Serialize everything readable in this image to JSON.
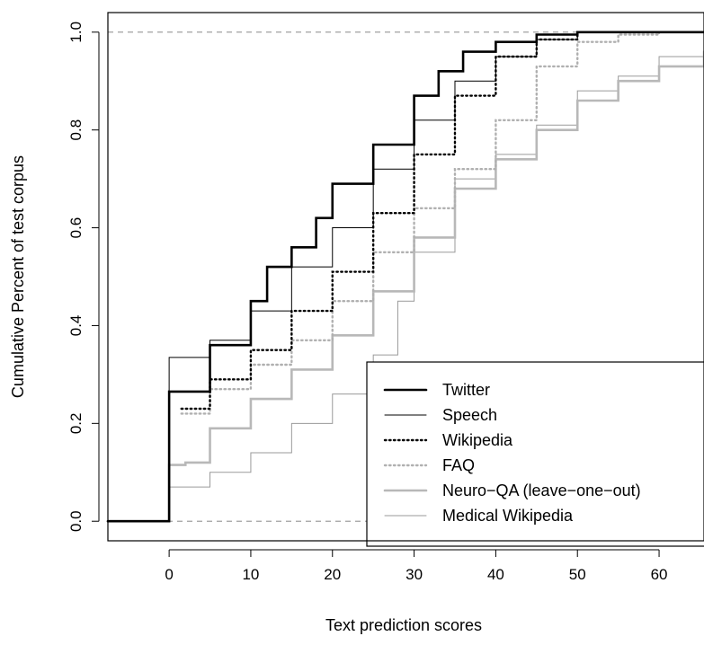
{
  "chart_data": {
    "type": "line",
    "title": "",
    "xlabel": "Text prediction scores",
    "ylabel": "Cumulative Percent of test corpus",
    "xlim": [
      -7.5,
      65.5
    ],
    "ylim": [
      -0.04,
      1.04
    ],
    "xticks": [
      "0",
      "10",
      "20",
      "30",
      "40",
      "50",
      "60"
    ],
    "yticks": [
      "0.0",
      "0.2",
      "0.4",
      "0.6",
      "0.8",
      "1.0"
    ],
    "reference_lines": [
      0,
      1
    ],
    "legend": {
      "placement": "bottom-right",
      "entries": [
        "Twitter",
        "Speech",
        "Wikipedia",
        "FAQ",
        "Neuro−QA (leave−one−out)",
        "Medical Wikipedia"
      ]
    },
    "series": [
      {
        "name": "Twitter",
        "color": "#000000",
        "style": "thick-solid",
        "points": [
          [
            -7.5,
            0
          ],
          [
            0,
            0
          ],
          [
            0,
            0.265
          ],
          [
            2,
            0.265
          ],
          [
            5,
            0.36
          ],
          [
            10,
            0.45
          ],
          [
            12,
            0.52
          ],
          [
            15,
            0.56
          ],
          [
            18,
            0.62
          ],
          [
            20,
            0.69
          ],
          [
            25,
            0.77
          ],
          [
            30,
            0.87
          ],
          [
            33,
            0.92
          ],
          [
            36,
            0.96
          ],
          [
            40,
            0.98
          ],
          [
            45,
            0.995
          ],
          [
            50,
            1.0
          ],
          [
            65.5,
            1.0
          ]
        ]
      },
      {
        "name": "Speech",
        "color": "#000000",
        "style": "thin-solid",
        "points": [
          [
            -7.5,
            0
          ],
          [
            0,
            0
          ],
          [
            0,
            0.335
          ],
          [
            2,
            0.335
          ],
          [
            5,
            0.37
          ],
          [
            10,
            0.43
          ],
          [
            15,
            0.52
          ],
          [
            20,
            0.6
          ],
          [
            25,
            0.72
          ],
          [
            30,
            0.82
          ],
          [
            35,
            0.9
          ],
          [
            40,
            0.95
          ],
          [
            45,
            0.985
          ],
          [
            50,
            1.0
          ],
          [
            65.5,
            1.0
          ]
        ]
      },
      {
        "name": "Wikipedia",
        "color": "#000000",
        "style": "dotted",
        "points": [
          [
            1.5,
            0.23
          ],
          [
            5,
            0.29
          ],
          [
            10,
            0.35
          ],
          [
            15,
            0.43
          ],
          [
            20,
            0.51
          ],
          [
            25,
            0.63
          ],
          [
            30,
            0.75
          ],
          [
            35,
            0.87
          ],
          [
            40,
            0.95
          ],
          [
            45,
            0.985
          ],
          [
            50,
            1.0
          ],
          [
            65.5,
            1.0
          ]
        ]
      },
      {
        "name": "FAQ",
        "color": "#b0b0b0",
        "style": "dotted",
        "points": [
          [
            1.5,
            0.22
          ],
          [
            5,
            0.27
          ],
          [
            10,
            0.32
          ],
          [
            15,
            0.37
          ],
          [
            20,
            0.45
          ],
          [
            25,
            0.55
          ],
          [
            30,
            0.64
          ],
          [
            35,
            0.72
          ],
          [
            40,
            0.82
          ],
          [
            45,
            0.93
          ],
          [
            50,
            0.98
          ],
          [
            55,
            0.995
          ],
          [
            60,
            1.0
          ],
          [
            65.5,
            1.0
          ]
        ]
      },
      {
        "name": "Neuro−QA (leave−one−out)",
        "color": "#b8b8b8",
        "style": "thick-solid",
        "points": [
          [
            -7.5,
            0
          ],
          [
            0,
            0
          ],
          [
            0,
            0.115
          ],
          [
            2,
            0.12
          ],
          [
            5,
            0.19
          ],
          [
            10,
            0.25
          ],
          [
            15,
            0.31
          ],
          [
            20,
            0.38
          ],
          [
            25,
            0.47
          ],
          [
            30,
            0.58
          ],
          [
            35,
            0.68
          ],
          [
            40,
            0.74
          ],
          [
            45,
            0.8
          ],
          [
            50,
            0.86
          ],
          [
            55,
            0.9
          ],
          [
            60,
            0.93
          ],
          [
            65.5,
            0.96
          ]
        ]
      },
      {
        "name": "Medical Wikipedia",
        "color": "#9a9a9a",
        "style": "thin-solid",
        "points": [
          [
            -7.5,
            0
          ],
          [
            0,
            0
          ],
          [
            0,
            0.07
          ],
          [
            2,
            0.07
          ],
          [
            5,
            0.1
          ],
          [
            10,
            0.14
          ],
          [
            15,
            0.2
          ],
          [
            20,
            0.26
          ],
          [
            25,
            0.34
          ],
          [
            28,
            0.45
          ],
          [
            30,
            0.55
          ],
          [
            35,
            0.7
          ],
          [
            40,
            0.75
          ],
          [
            45,
            0.81
          ],
          [
            50,
            0.88
          ],
          [
            55,
            0.91
          ],
          [
            60,
            0.95
          ],
          [
            65.5,
            0.98
          ]
        ]
      }
    ]
  }
}
